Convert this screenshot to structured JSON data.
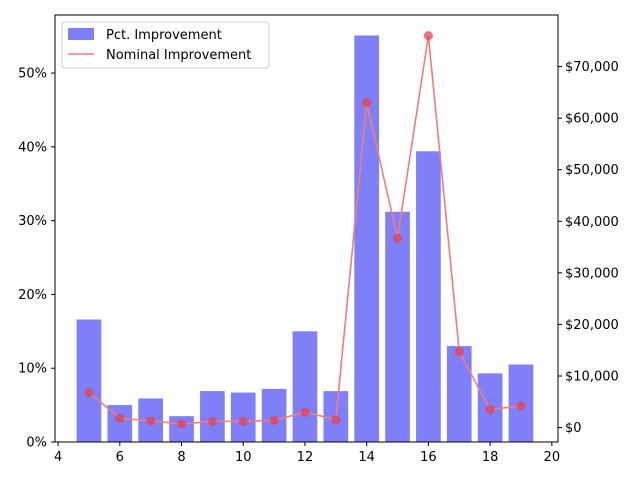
{
  "chart_data": {
    "type": "bar",
    "x": [
      5,
      6,
      7,
      8,
      9,
      10,
      11,
      12,
      13,
      14,
      15,
      16,
      17,
      18,
      19
    ],
    "series": [
      {
        "name": "Pct. Improvement",
        "kind": "bar",
        "axis": "left",
        "color": "#7f7ff7",
        "values": [
          0.166,
          0.05,
          0.059,
          0.035,
          0.069,
          0.067,
          0.072,
          0.15,
          0.069,
          0.551,
          0.312,
          0.394,
          0.13,
          0.093,
          0.105
        ]
      },
      {
        "name": "Nominal Improvement",
        "kind": "line",
        "axis": "right",
        "color": "#f27c7c",
        "marker_color": "#e8404e",
        "values": [
          6800,
          1800,
          1300,
          700,
          1200,
          1200,
          1400,
          3000,
          1500,
          63000,
          36700,
          76000,
          14700,
          3500,
          4200
        ]
      }
    ],
    "xlim": [
      3.9,
      20.2
    ],
    "xticks": [
      4,
      6,
      8,
      10,
      12,
      14,
      16,
      18,
      20
    ],
    "xtick_labels": [
      "4",
      "6",
      "8",
      "10",
      "12",
      "14",
      "16",
      "18",
      "20"
    ],
    "ylim_left": [
      0,
      0.5787
    ],
    "yticks_left": [
      0,
      0.1,
      0.2,
      0.3,
      0.4,
      0.5
    ],
    "ytick_labels_left": [
      "0%",
      "10%",
      "20%",
      "30%",
      "40%",
      "50%"
    ],
    "ylim_right": [
      -2800,
      80000
    ],
    "yticks_right": [
      0,
      10000,
      20000,
      30000,
      40000,
      50000,
      60000,
      70000
    ],
    "ytick_labels_right": [
      "$0",
      "$10,000",
      "$20,000",
      "$30,000",
      "$40,000",
      "$50,000",
      "$60,000",
      "$70,000"
    ],
    "bar_width": 0.8,
    "legend_position": "top-left",
    "title": "",
    "xlabel": "",
    "ylabel": "",
    "grid": false
  }
}
